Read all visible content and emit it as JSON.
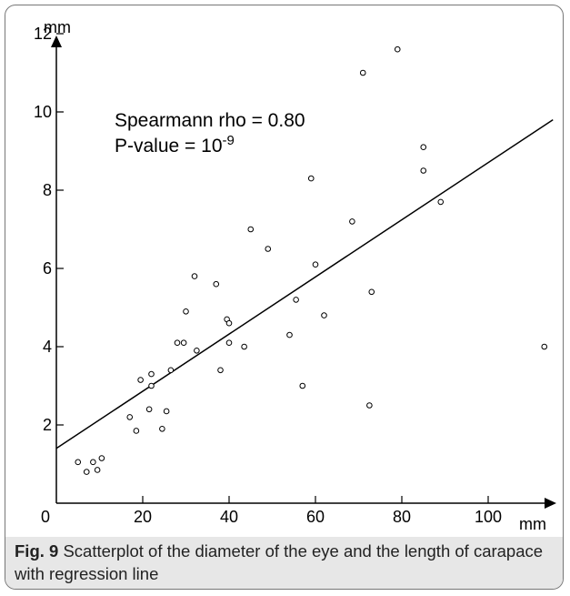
{
  "chart_data": {
    "type": "scatter",
    "x_unit": "mm",
    "y_unit": "mm",
    "xlim": [
      0,
      115
    ],
    "ylim": [
      0,
      12.5
    ],
    "xticks": [
      0,
      20,
      40,
      60,
      80,
      100
    ],
    "xtick_labels": [
      "0",
      "20",
      "40",
      "60",
      "80",
      "100"
    ],
    "yticks": [
      2,
      4,
      6,
      8,
      10,
      12
    ],
    "ytick_labels": [
      "2",
      "4",
      "6",
      "8",
      "10",
      "12"
    ],
    "grid": false,
    "annotation": {
      "line1": "Spearmann rho = 0.80",
      "line2_base": "P-value = 10",
      "line2_exponent": "-9"
    },
    "regression_line": {
      "x": [
        0,
        115
      ],
      "y": [
        1.4,
        9.8
      ]
    },
    "points": [
      {
        "x": 5,
        "y": 1.05
      },
      {
        "x": 7,
        "y": 0.8
      },
      {
        "x": 8.5,
        "y": 1.05
      },
      {
        "x": 9.5,
        "y": 0.85
      },
      {
        "x": 10.5,
        "y": 1.15
      },
      {
        "x": 17,
        "y": 2.2
      },
      {
        "x": 18.5,
        "y": 1.85
      },
      {
        "x": 19.5,
        "y": 3.15
      },
      {
        "x": 21.5,
        "y": 2.4
      },
      {
        "x": 22,
        "y": 3.3
      },
      {
        "x": 22,
        "y": 3.0
      },
      {
        "x": 24.5,
        "y": 1.9
      },
      {
        "x": 25.5,
        "y": 2.35
      },
      {
        "x": 26.5,
        "y": 3.4
      },
      {
        "x": 28,
        "y": 4.1
      },
      {
        "x": 29.5,
        "y": 4.1
      },
      {
        "x": 30,
        "y": 4.9
      },
      {
        "x": 32,
        "y": 5.8
      },
      {
        "x": 32.5,
        "y": 3.9
      },
      {
        "x": 37,
        "y": 5.6
      },
      {
        "x": 38,
        "y": 3.4
      },
      {
        "x": 39.5,
        "y": 4.7
      },
      {
        "x": 40,
        "y": 4.6
      },
      {
        "x": 40,
        "y": 4.1
      },
      {
        "x": 43.5,
        "y": 4.0
      },
      {
        "x": 45,
        "y": 7.0
      },
      {
        "x": 49,
        "y": 6.5
      },
      {
        "x": 54,
        "y": 4.3
      },
      {
        "x": 55.5,
        "y": 5.2
      },
      {
        "x": 57,
        "y": 3.0
      },
      {
        "x": 59,
        "y": 8.3
      },
      {
        "x": 60,
        "y": 6.1
      },
      {
        "x": 62,
        "y": 4.8
      },
      {
        "x": 68.5,
        "y": 7.2
      },
      {
        "x": 71,
        "y": 11.0
      },
      {
        "x": 72.5,
        "y": 2.5
      },
      {
        "x": 73,
        "y": 5.4
      },
      {
        "x": 79,
        "y": 11.6
      },
      {
        "x": 85,
        "y": 9.1
      },
      {
        "x": 85,
        "y": 8.5
      },
      {
        "x": 89,
        "y": 7.7
      },
      {
        "x": 113,
        "y": 4.0
      }
    ]
  },
  "caption": {
    "label": "Fig. 9",
    "text": " Scatterplot of the diameter of the eye and the length of carapace with regression line"
  }
}
